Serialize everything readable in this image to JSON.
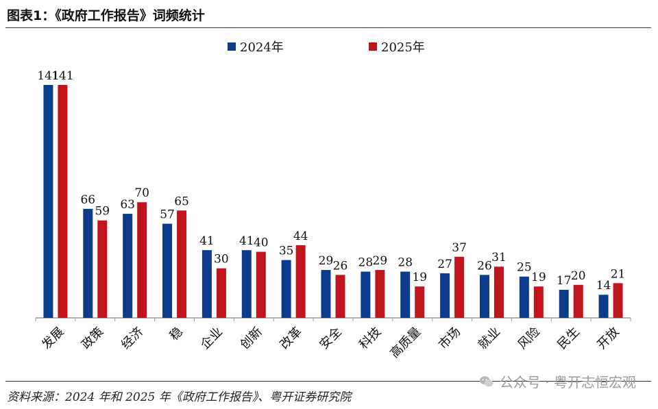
{
  "title": "图表1：《政府工作报告》词频统计",
  "source": "资料来源：2024 年和 2025 年《政府工作报告》、粤开证券研究院",
  "watermark": "公众号 · 粤开志恒宏观",
  "colors": {
    "series_2024": "#0d3b8c",
    "series_2025": "#c0151d",
    "axis": "#999999"
  },
  "chart_data": {
    "type": "bar",
    "categories": [
      "发展",
      "政策",
      "经济",
      "稳",
      "企业",
      "创新",
      "改革",
      "安全",
      "科技",
      "高质量",
      "市场",
      "就业",
      "风险",
      "民生",
      "开放"
    ],
    "series": [
      {
        "name": "2024年",
        "values": [
          141,
          66,
          63,
          57,
          41,
          41,
          35,
          29,
          28,
          28,
          27,
          26,
          25,
          17,
          14
        ]
      },
      {
        "name": "2025年",
        "values": [
          141,
          59,
          70,
          65,
          30,
          40,
          44,
          26,
          29,
          19,
          37,
          31,
          19,
          20,
          21
        ]
      }
    ],
    "ylim": [
      0,
      145
    ],
    "legend": "top-center",
    "grid": false
  }
}
